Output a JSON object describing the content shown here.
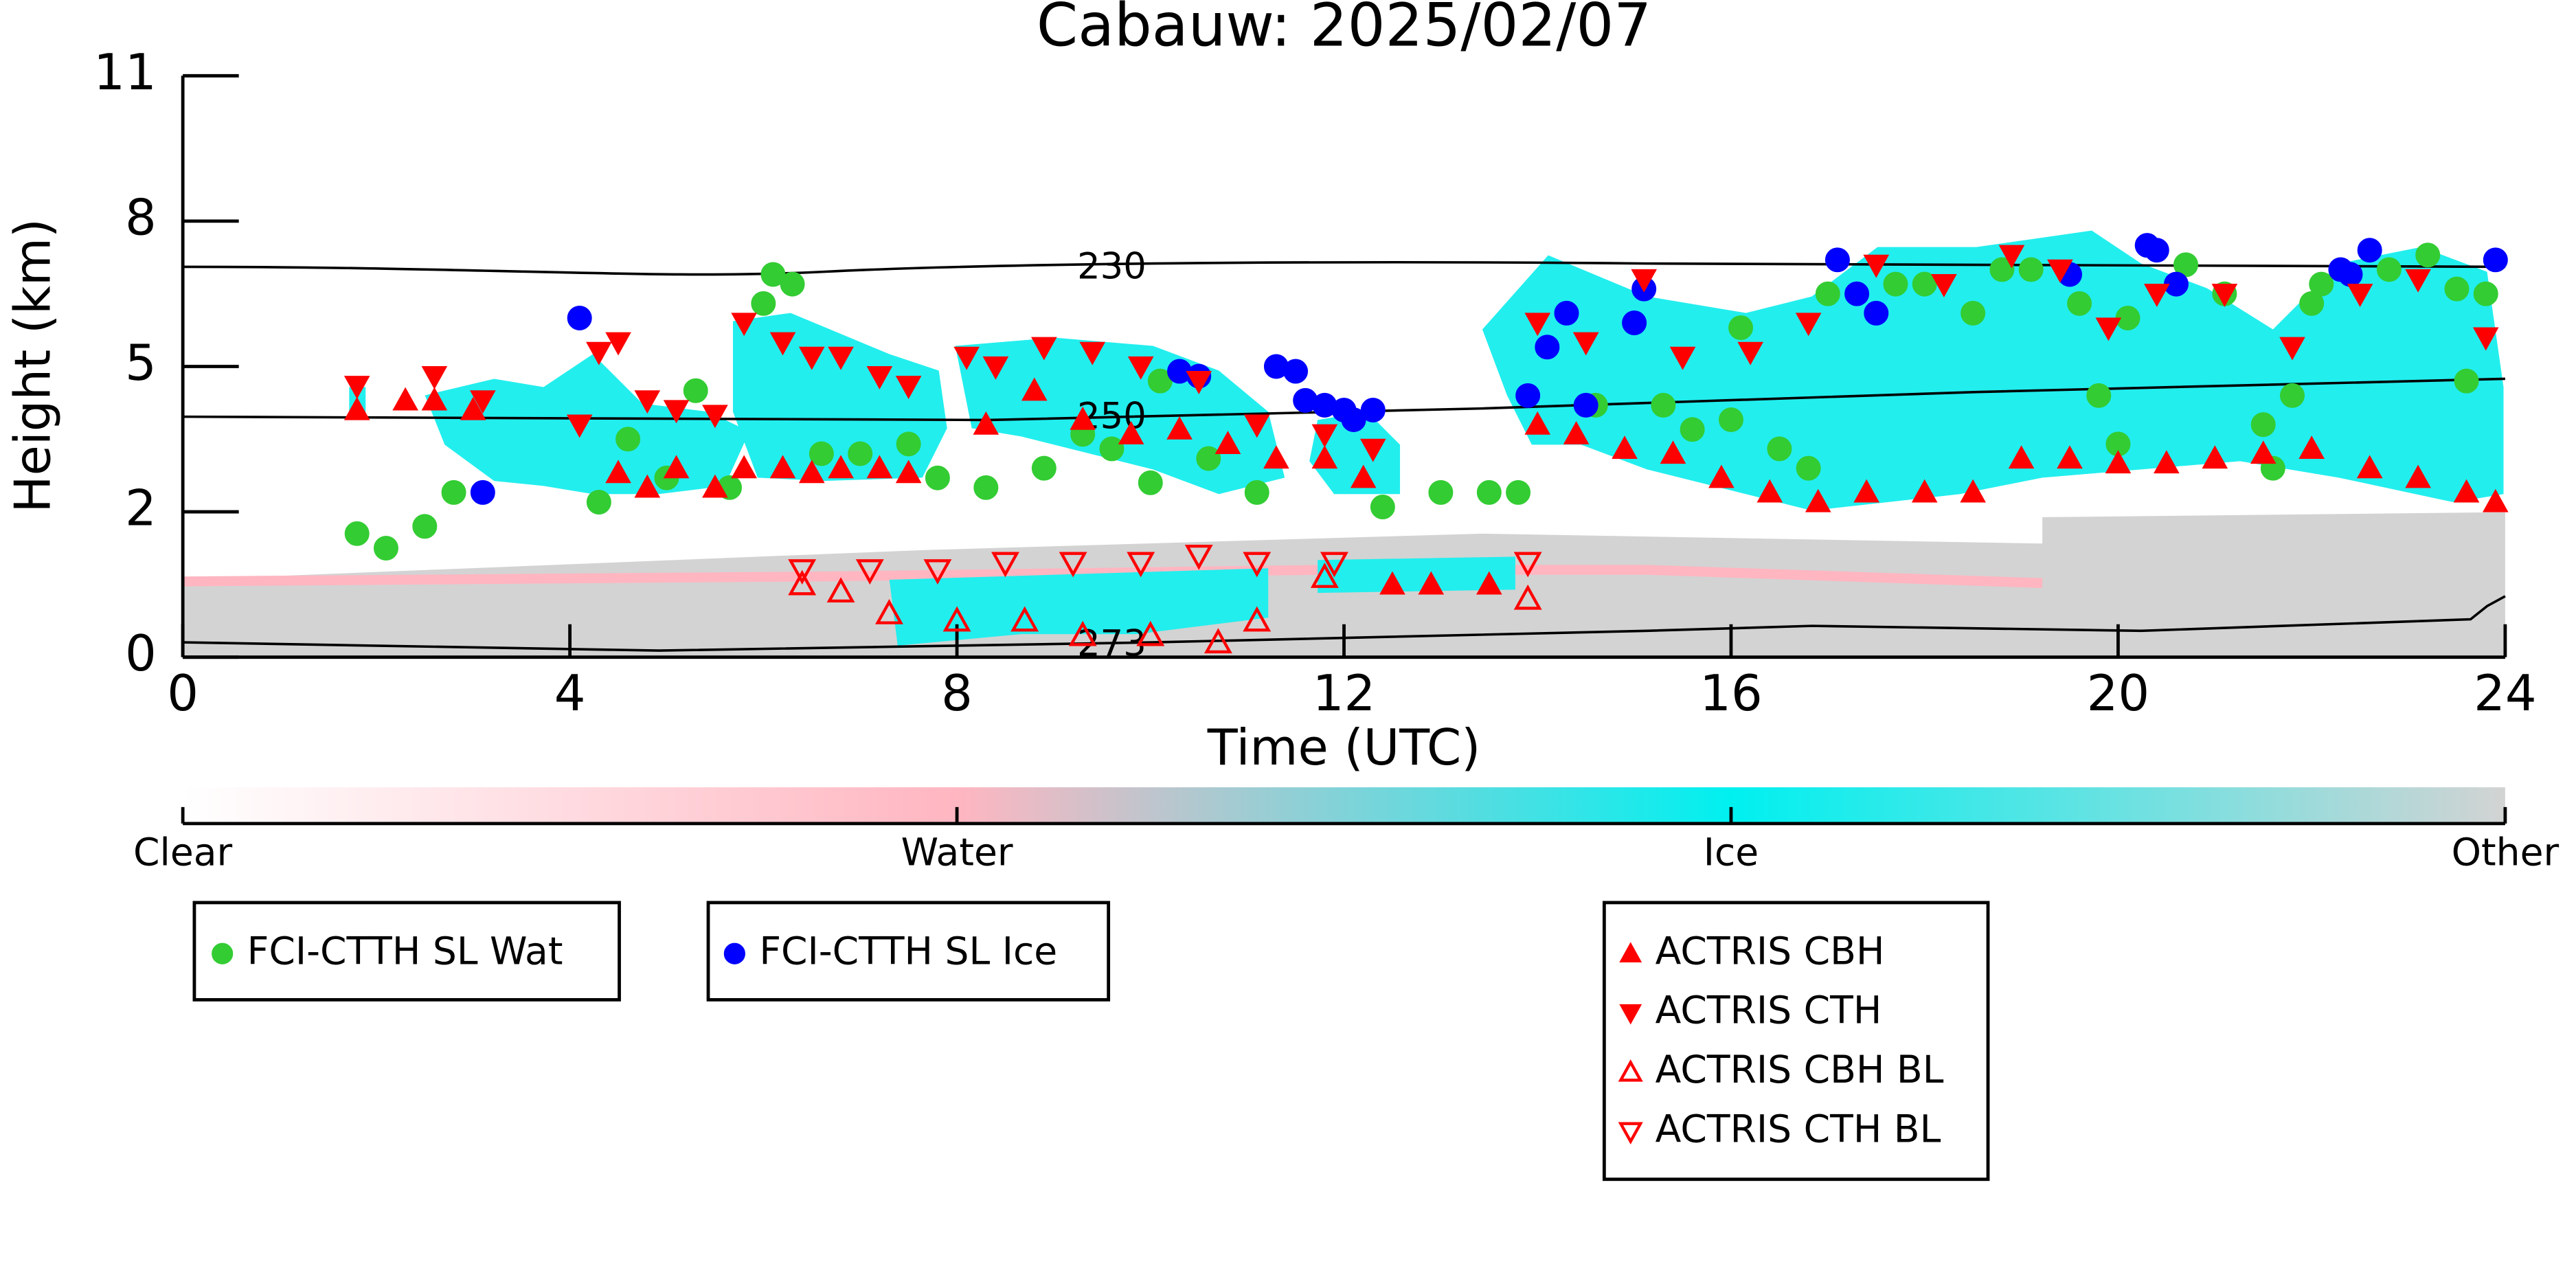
{
  "chart_data": {
    "type": "scatter",
    "title": "Cabauw: 2025/02/07",
    "x_label": "Time (UTC)",
    "y_label": "Height (km)",
    "xlim": [
      0,
      24
    ],
    "xticks": [
      0,
      4,
      8,
      12,
      16,
      20,
      24
    ],
    "ylim": [
      0,
      11
    ],
    "yticks": [
      0,
      2,
      5,
      8,
      11
    ],
    "y_ticks_evenly_spaced": true,
    "grid": false,
    "contours": [
      "230",
      "250",
      "273"
    ],
    "colorbar": {
      "labels": [
        "Clear",
        "Water",
        "Ice",
        "Other"
      ],
      "colors": [
        "#ffffff",
        "#ffb6c1",
        "#00f0f0",
        "#d3d3d3"
      ]
    },
    "series": [
      {
        "name": "FCI-CTTH SL Wat",
        "color": "#33cc33",
        "marker": "circle",
        "filled": true,
        "x": [
          1.8,
          2.1,
          2.5,
          2.8,
          4.3,
          4.6,
          5.0,
          5.3,
          5.65,
          6.0,
          6.1,
          6.3,
          6.6,
          7.0,
          7.5,
          7.8,
          8.3,
          8.9,
          9.3,
          9.6,
          10.0,
          10.1,
          10.6,
          11.1,
          12.4,
          13.0,
          13.5,
          13.8,
          14.6,
          15.3,
          15.6,
          16.0,
          16.1,
          16.5,
          16.8,
          17.0,
          17.7,
          18.0,
          18.5,
          18.8,
          19.1,
          19.6,
          19.8,
          20.0,
          20.1,
          20.7,
          21.1,
          21.5,
          21.6,
          21.8,
          22.0,
          22.1,
          22.8,
          23.2,
          23.5,
          23.6,
          23.8
        ],
        "values": [
          1.7,
          1.5,
          1.8,
          2.4,
          2.2,
          3.5,
          2.7,
          4.5,
          2.5,
          6.3,
          6.9,
          6.7,
          3.2,
          3.2,
          3.4,
          2.7,
          2.5,
          2.9,
          3.6,
          3.3,
          2.6,
          4.7,
          3.1,
          2.4,
          2.1,
          2.4,
          2.4,
          2.4,
          4.2,
          4.2,
          3.7,
          3.9,
          5.8,
          3.3,
          2.9,
          6.5,
          6.7,
          6.7,
          6.1,
          7.0,
          7.0,
          6.3,
          4.4,
          3.4,
          6.0,
          7.1,
          6.5,
          3.8,
          2.9,
          4.4,
          6.3,
          6.7,
          7.0,
          7.3,
          6.6,
          4.7,
          6.5
        ]
      },
      {
        "name": "FCI-CTTH SL Ice",
        "color": "#0000ff",
        "marker": "circle",
        "filled": true,
        "x": [
          3.1,
          4.1,
          10.3,
          10.5,
          11.3,
          11.5,
          11.6,
          11.8,
          12.0,
          12.1,
          12.3,
          13.9,
          14.1,
          14.3,
          14.5,
          15.0,
          15.1,
          17.1,
          17.3,
          17.5,
          19.5,
          20.3,
          20.4,
          20.6,
          22.3,
          22.4,
          22.6,
          23.9
        ],
        "values": [
          2.4,
          6.0,
          4.9,
          4.8,
          5.0,
          4.9,
          4.3,
          4.2,
          4.1,
          3.9,
          4.1,
          4.4,
          5.4,
          6.1,
          4.2,
          5.9,
          6.6,
          7.2,
          6.5,
          6.1,
          6.9,
          7.5,
          7.4,
          6.7,
          7.0,
          6.9,
          7.4,
          7.2
        ]
      },
      {
        "name": "ACTRIS CBH",
        "color": "#ff0000",
        "marker": "triangle-up",
        "filled": true,
        "x": [
          1.8,
          2.3,
          2.6,
          3.0,
          4.5,
          4.8,
          5.1,
          5.5,
          5.8,
          6.2,
          6.5,
          6.8,
          7.2,
          7.5,
          8.3,
          8.8,
          9.3,
          9.8,
          10.3,
          10.8,
          11.3,
          11.8,
          12.2,
          12.5,
          12.9,
          13.5,
          14.0,
          14.4,
          14.9,
          15.4,
          15.9,
          16.4,
          16.9,
          17.4,
          18.0,
          18.5,
          19.0,
          19.5,
          20.0,
          20.5,
          21.0,
          21.5,
          22.0,
          22.6,
          23.1,
          23.6,
          23.9
        ],
        "values": [
          4.1,
          4.3,
          4.3,
          4.1,
          2.8,
          2.5,
          2.9,
          2.5,
          2.9,
          2.9,
          2.8,
          2.9,
          2.9,
          2.8,
          3.8,
          4.5,
          3.9,
          3.6,
          3.7,
          3.4,
          3.1,
          3.1,
          2.7,
          1.0,
          1.0,
          1.0,
          3.8,
          3.6,
          3.3,
          3.2,
          2.7,
          2.4,
          2.2,
          2.4,
          2.4,
          2.4,
          3.1,
          3.1,
          3.0,
          3.0,
          3.1,
          3.2,
          3.3,
          2.9,
          2.7,
          2.4,
          2.2
        ]
      },
      {
        "name": "ACTRIS CTH",
        "color": "#ff0000",
        "marker": "triangle-down",
        "filled": true,
        "x": [
          1.8,
          2.6,
          3.1,
          4.1,
          4.3,
          4.5,
          4.8,
          5.1,
          5.5,
          5.8,
          6.2,
          6.5,
          6.8,
          7.2,
          7.5,
          8.1,
          8.4,
          8.9,
          9.4,
          9.9,
          10.5,
          11.1,
          11.8,
          12.3,
          14.0,
          14.5,
          15.1,
          15.5,
          16.2,
          16.8,
          17.5,
          18.2,
          18.9,
          19.4,
          19.9,
          20.4,
          21.1,
          21.8,
          22.5,
          23.1,
          23.8
        ],
        "values": [
          4.6,
          4.8,
          4.3,
          3.8,
          5.3,
          5.5,
          4.3,
          4.1,
          4.0,
          5.9,
          5.5,
          5.2,
          5.2,
          4.8,
          4.6,
          5.2,
          5.0,
          5.4,
          5.3,
          5.0,
          4.7,
          3.8,
          3.6,
          3.3,
          5.9,
          5.5,
          6.8,
          5.2,
          5.3,
          5.9,
          7.1,
          6.7,
          7.3,
          7.0,
          5.8,
          6.5,
          6.5,
          5.4,
          6.5,
          6.8,
          5.6
        ]
      },
      {
        "name": "ACTRIS CBH BL",
        "color": "#ff0000",
        "marker": "triangle-up",
        "filled": false,
        "x": [
          6.4,
          6.8,
          7.3,
          8.0,
          8.7,
          9.3,
          10.0,
          10.7,
          11.1,
          11.8,
          13.9
        ],
        "values": [
          1.0,
          0.9,
          0.6,
          0.5,
          0.5,
          0.3,
          0.3,
          0.2,
          0.5,
          1.1,
          0.8
        ]
      },
      {
        "name": "ACTRIS CTH BL",
        "color": "#ff0000",
        "marker": "triangle-down",
        "filled": false,
        "x": [
          6.4,
          7.1,
          7.8,
          8.5,
          9.2,
          9.9,
          10.5,
          11.1,
          11.9,
          13.9
        ],
        "values": [
          1.2,
          1.2,
          1.2,
          1.3,
          1.3,
          1.3,
          1.4,
          1.3,
          1.3,
          1.3
        ]
      }
    ]
  }
}
